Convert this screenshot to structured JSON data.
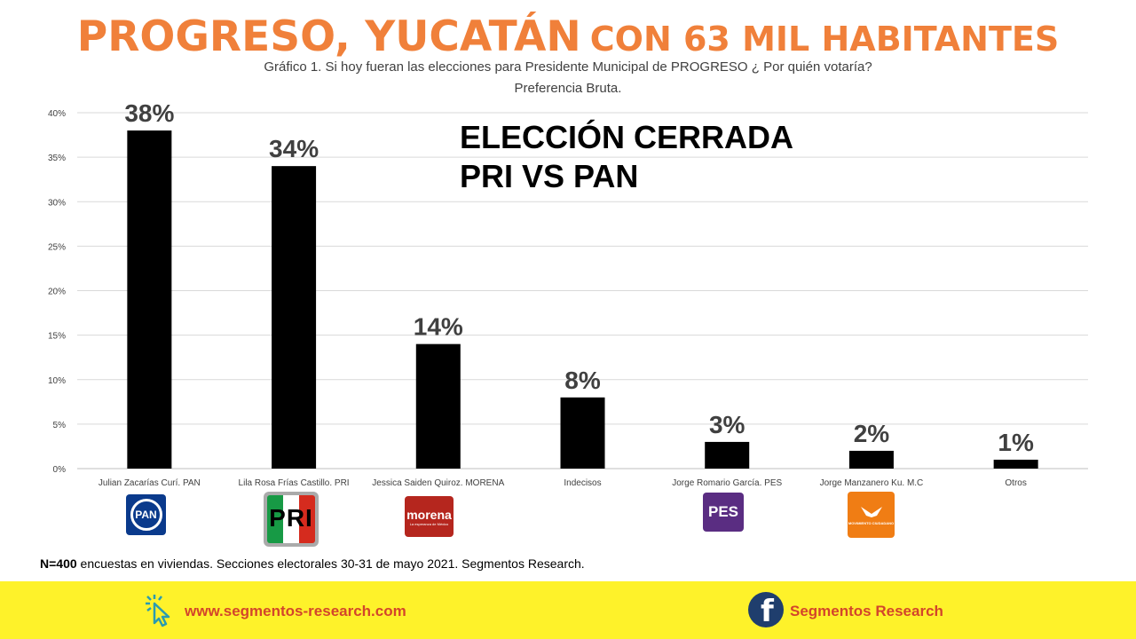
{
  "header": {
    "title": "PROGRESO, YUCATÁN",
    "title_suffix": "CON 63 MIL HABITANTES",
    "subtitle_line1": "Gráfico 1. Si hoy fueran las elecciones para Presidente Municipal de PROGRESO  ¿ Por quién votaría?",
    "subtitle_line2": "Preferencia Bruta."
  },
  "callout": {
    "line1": "ELECCIÓN CERRADA",
    "line2": "PRI VS PAN"
  },
  "chart_data": {
    "type": "bar",
    "categories": [
      "Julian Zacarías Curí. PAN",
      "Lila Rosa Frías Castillo. PRI",
      "Jessica Saiden Quiroz. MORENA",
      "Indecisos",
      "Jorge Romario García. PES",
      "Jorge Manzanero Ku. M.C",
      "Otros"
    ],
    "values": [
      38,
      34,
      14,
      8,
      3,
      2,
      1
    ],
    "data_labels": [
      "38%",
      "34%",
      "14%",
      "8%",
      "3%",
      "2%",
      "1%"
    ],
    "y_ticks": [
      "0%",
      "5%",
      "10%",
      "15%",
      "20%",
      "25%",
      "30%",
      "35%",
      "40%"
    ],
    "ylim": [
      0,
      40
    ],
    "grid": true,
    "bar_color": "#000000",
    "label_color": "#404040"
  },
  "logos": {
    "pan": "PAN",
    "pri": "PRI",
    "morena": "morena",
    "morena_tagline": "La esperanza de México",
    "pes": "PES",
    "mc": "MOVIMIENTO CIUDADANO"
  },
  "footnote": {
    "bold": "N=400",
    "text": " encuestas en viviendas. Secciones electorales 30-31 de mayo 2021. Segmentos Research."
  },
  "footer": {
    "website": "www.segmentos-research.com",
    "facebook": "Segmentos Research",
    "icons": [
      "cursor-click-icon",
      "facebook-icon"
    ]
  },
  "colors": {
    "title": "#f0803a",
    "footer_bg": "#fef22a",
    "footer_text": "#d3452b",
    "pan": "#0a3a8c",
    "morena": "#b5261e",
    "pes": "#5a2d82",
    "mc": "#f07d14"
  }
}
